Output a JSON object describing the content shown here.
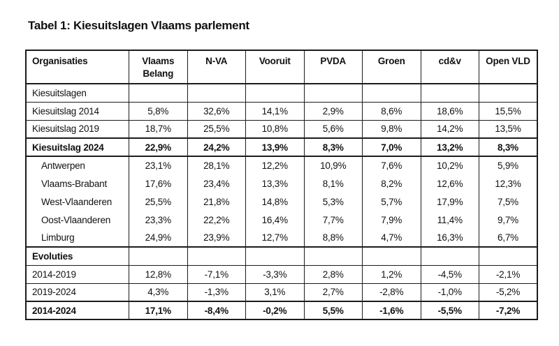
{
  "title": "Tabel 1: Kiesuitslagen Vlaams parlement",
  "colors": {
    "background": "#ffffff",
    "text": "#111111",
    "border": "#1b1b1b"
  },
  "table": {
    "columns": [
      "Organisaties",
      "Vlaams Belang",
      "N-VA",
      "Vooruit",
      "PVDA",
      "Groen",
      "cd&v",
      "Open VLD"
    ],
    "rows": [
      {
        "label": "Kiesuitslagen",
        "style": "section",
        "indent": false,
        "values": [
          "",
          "",
          "",
          "",
          "",
          "",
          ""
        ]
      },
      {
        "label": "Kiesuitslag 2014",
        "style": "data",
        "indent": false,
        "values": [
          "5,8%",
          "32,6%",
          "14,1%",
          "2,9%",
          "8,6%",
          "18,6%",
          "15,5%"
        ]
      },
      {
        "label": "Kiesuitslag 2019",
        "style": "data",
        "indent": false,
        "values": [
          "18,7%",
          "25,5%",
          "10,8%",
          "5,6%",
          "9,8%",
          "14,2%",
          "13,5%"
        ]
      },
      {
        "label": "Kiesuitslag 2024",
        "style": "bold",
        "indent": false,
        "values": [
          "22,9%",
          "24,2%",
          "13,9%",
          "8,3%",
          "7,0%",
          "13,2%",
          "8,3%"
        ]
      },
      {
        "label": "Antwerpen",
        "style": "province",
        "indent": true,
        "values": [
          "23,1%",
          "28,1%",
          "12,2%",
          "10,9%",
          "7,6%",
          "10,2%",
          "5,9%"
        ]
      },
      {
        "label": "Vlaams-Brabant",
        "style": "province",
        "indent": true,
        "values": [
          "17,6%",
          "23,4%",
          "13,3%",
          "8,1%",
          "8,2%",
          "12,6%",
          "12,3%"
        ]
      },
      {
        "label": "West-Vlaanderen",
        "style": "province",
        "indent": true,
        "values": [
          "25,5%",
          "21,8%",
          "14,8%",
          "5,3%",
          "5,7%",
          "17,9%",
          "7,5%"
        ]
      },
      {
        "label": "Oost-Vlaanderen",
        "style": "province",
        "indent": true,
        "values": [
          "23,3%",
          "22,2%",
          "16,4%",
          "7,7%",
          "7,9%",
          "11,4%",
          "9,7%"
        ]
      },
      {
        "label": "Limburg",
        "style": "province",
        "indent": true,
        "values": [
          "24,9%",
          "23,9%",
          "12,7%",
          "8,8%",
          "4,7%",
          "16,3%",
          "6,7%"
        ]
      },
      {
        "label": "Evoluties",
        "style": "section-bold",
        "indent": false,
        "values": [
          "",
          "",
          "",
          "",
          "",
          "",
          ""
        ]
      },
      {
        "label": "2014-2019",
        "style": "data",
        "indent": false,
        "values": [
          "12,8%",
          "-7,1%",
          "-3,3%",
          "2,8%",
          "1,2%",
          "-4,5%",
          "-2,1%"
        ]
      },
      {
        "label": "2019-2024",
        "style": "data",
        "indent": false,
        "values": [
          "4,3%",
          "-1,3%",
          "3,1%",
          "2,7%",
          "-2,8%",
          "-1,0%",
          "-5,2%"
        ]
      },
      {
        "label": "2014-2024",
        "style": "bold",
        "indent": false,
        "values": [
          "17,1%",
          "-8,4%",
          "-0,2%",
          "5,5%",
          "-1,6%",
          "-5,5%",
          "-7,2%"
        ]
      }
    ]
  }
}
